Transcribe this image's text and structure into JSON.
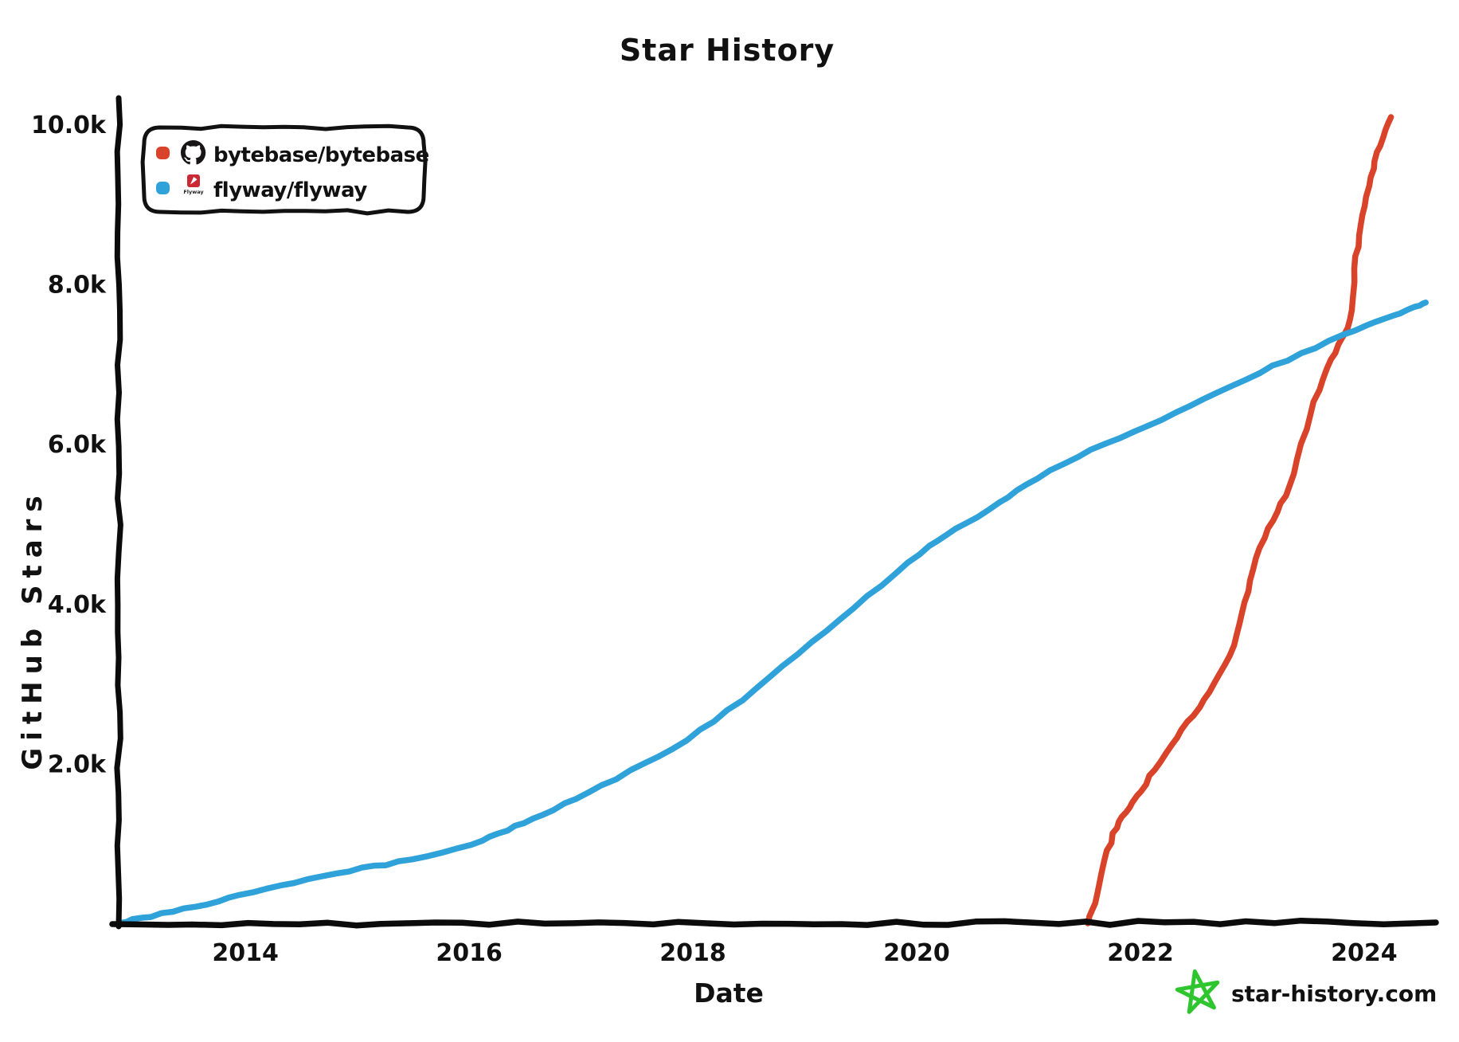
{
  "title": "Star History",
  "chart_data": {
    "type": "line",
    "title": "Star History",
    "xlabel": "Date",
    "ylabel": "GitHub Stars",
    "grid": false,
    "legend_position": "top-left",
    "x_range": [
      2012.86,
      2024.62
    ],
    "y_range": [
      0,
      10000
    ],
    "x_ticks": [
      {
        "value": 2014,
        "label": "2014"
      },
      {
        "value": 2016,
        "label": "2016"
      },
      {
        "value": 2018,
        "label": "2018"
      },
      {
        "value": 2020,
        "label": "2020"
      },
      {
        "value": 2022,
        "label": "2022"
      },
      {
        "value": 2024,
        "label": "2024"
      }
    ],
    "y_ticks": [
      {
        "value": 2000,
        "label": "2.0k"
      },
      {
        "value": 4000,
        "label": "4.0k"
      },
      {
        "value": 6000,
        "label": "6.0k"
      },
      {
        "value": 8000,
        "label": "8.0k"
      },
      {
        "value": 10000,
        "label": "10.0k"
      }
    ],
    "series": [
      {
        "name": "bytebase/bytebase",
        "icon": "github-octocat-icon",
        "color": "#d8432a",
        "points": [
          [
            2021.53,
            10
          ],
          [
            2021.62,
            420
          ],
          [
            2021.72,
            1000
          ],
          [
            2021.82,
            1330
          ],
          [
            2021.95,
            1550
          ],
          [
            2022.1,
            1880
          ],
          [
            2022.3,
            2300
          ],
          [
            2022.5,
            2660
          ],
          [
            2022.7,
            3060
          ],
          [
            2022.85,
            3550
          ],
          [
            2022.95,
            4100
          ],
          [
            2023.05,
            4650
          ],
          [
            2023.2,
            5120
          ],
          [
            2023.35,
            5520
          ],
          [
            2023.5,
            6300
          ],
          [
            2023.65,
            6920
          ],
          [
            2023.8,
            7300
          ],
          [
            2023.88,
            7560
          ],
          [
            2023.92,
            8300
          ],
          [
            2023.98,
            8800
          ],
          [
            2024.05,
            9300
          ],
          [
            2024.13,
            9700
          ],
          [
            2024.24,
            10100
          ]
        ]
      },
      {
        "name": "flyway/flyway",
        "icon": "flyway-logo-icon",
        "color": "#30a2da",
        "points": [
          [
            2012.87,
            20
          ],
          [
            2013.2,
            110
          ],
          [
            2013.6,
            240
          ],
          [
            2014.0,
            380
          ],
          [
            2014.5,
            530
          ],
          [
            2015.0,
            690
          ],
          [
            2015.4,
            780
          ],
          [
            2016.0,
            970
          ],
          [
            2016.3,
            1150
          ],
          [
            2016.6,
            1340
          ],
          [
            2017.0,
            1600
          ],
          [
            2017.5,
            1960
          ],
          [
            2018.0,
            2350
          ],
          [
            2018.5,
            2860
          ],
          [
            2019.0,
            3460
          ],
          [
            2019.5,
            4020
          ],
          [
            2020.0,
            4620
          ],
          [
            2020.3,
            4900
          ],
          [
            2020.7,
            5230
          ],
          [
            2021.0,
            5530
          ],
          [
            2021.5,
            5910
          ],
          [
            2022.0,
            6180
          ],
          [
            2022.5,
            6520
          ],
          [
            2023.0,
            6860
          ],
          [
            2023.5,
            7180
          ],
          [
            2024.0,
            7480
          ],
          [
            2024.3,
            7630
          ],
          [
            2024.55,
            7780
          ]
        ]
      }
    ]
  },
  "watermark": {
    "label": "star-history.com",
    "text_color": "#787878",
    "star_color": "#2ec52e"
  }
}
